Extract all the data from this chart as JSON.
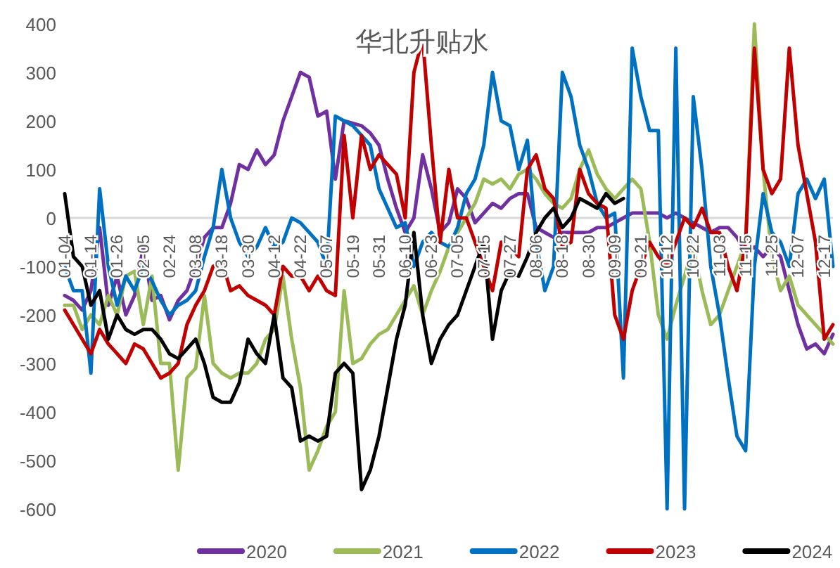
{
  "chart_data": {
    "type": "line",
    "title": "华北升贴水",
    "legend": "bottom",
    "ylim": [
      -600,
      400
    ],
    "yticks": [
      -600,
      -500,
      -400,
      -300,
      -200,
      -100,
      0,
      100,
      200,
      300,
      400
    ],
    "categories": [
      "01-04",
      null,
      null,
      "01-14",
      null,
      null,
      "01-26",
      null,
      null,
      "02-05",
      null,
      null,
      "02-24",
      null,
      null,
      "03-08",
      null,
      null,
      "03-18",
      null,
      null,
      "03-30",
      null,
      null,
      "04-12",
      null,
      null,
      "04-22",
      null,
      null,
      "05-07",
      null,
      null,
      "05-19",
      null,
      null,
      "05-31",
      null,
      null,
      "06-10",
      null,
      null,
      "06-23",
      null,
      null,
      "07-05",
      null,
      null,
      "07-15",
      null,
      null,
      "07-27",
      null,
      null,
      "08-06",
      null,
      null,
      "08-18",
      null,
      null,
      "08-30",
      null,
      null,
      "09-09",
      null,
      null,
      "09-21",
      null,
      null,
      "10-12",
      null,
      null,
      "10-22",
      null,
      null,
      "11-03",
      null,
      null,
      "11-15",
      null,
      null,
      "11-25",
      null,
      null,
      "12-07",
      null,
      null,
      "12-17",
      null
    ],
    "series": [
      {
        "name": "2020",
        "color": "#7030a0",
        "values": [
          -160,
          -170,
          -190,
          -150,
          -20,
          -180,
          -120,
          -200,
          -160,
          -60,
          -170,
          -160,
          -210,
          -170,
          -150,
          -100,
          -40,
          -20,
          -20,
          30,
          110,
          100,
          140,
          110,
          130,
          200,
          250,
          300,
          290,
          210,
          220,
          80,
          200,
          195,
          190,
          175,
          150,
          80,
          20,
          -30,
          0,
          130,
          60,
          -30,
          -10,
          60,
          40,
          -10,
          10,
          30,
          20,
          40,
          50,
          50,
          -20,
          -30,
          -40,
          -30,
          -30,
          -30,
          -30,
          -20,
          -20,
          -10,
          0,
          10,
          10,
          10,
          10,
          0,
          10,
          0,
          -10,
          -20,
          -30,
          -20,
          -20,
          -40,
          -70,
          -60,
          -80,
          -60,
          -80,
          -150,
          -220,
          -270,
          -260,
          -280,
          -240
        ]
      },
      {
        "name": "2021",
        "color": "#9bbb59",
        "values": [
          -180,
          -180,
          -230,
          -200,
          -220,
          -160,
          -200,
          -120,
          -110,
          -220,
          -120,
          -300,
          -300,
          -520,
          -330,
          -310,
          -160,
          -300,
          -320,
          -330,
          -320,
          -320,
          -300,
          -250,
          -230,
          -120,
          -250,
          -350,
          -520,
          -480,
          -430,
          -400,
          -150,
          -300,
          -290,
          -260,
          -240,
          -230,
          -200,
          -170,
          -140,
          -200,
          -150,
          -110,
          -60,
          -30,
          0,
          30,
          80,
          70,
          80,
          60,
          90,
          100,
          80,
          50,
          30,
          20,
          40,
          100,
          140,
          90,
          60,
          40,
          60,
          80,
          60,
          -50,
          -200,
          -250,
          -180,
          -120,
          -60,
          -150,
          -220,
          -200,
          -150,
          -100,
          -50,
          400,
          100,
          -80,
          -150,
          -120,
          -180,
          -200,
          -220,
          -240,
          -260
        ]
      },
      {
        "name": "2022",
        "color": "#0070c0",
        "values": [
          -100,
          -150,
          -150,
          -320,
          60,
          -100,
          -180,
          -120,
          -150,
          -100,
          -130,
          -170,
          -200,
          -180,
          -170,
          -150,
          -80,
          -20,
          100,
          0,
          -50,
          -80,
          -60,
          -20,
          -60,
          -50,
          0,
          -10,
          -30,
          -50,
          -100,
          210,
          200,
          190,
          170,
          150,
          60,
          20,
          -20,
          -10,
          -100,
          -50,
          -30,
          -50,
          -60,
          -20,
          50,
          80,
          150,
          300,
          200,
          190,
          100,
          160,
          -50,
          -150,
          -100,
          300,
          250,
          150,
          100,
          30,
          0,
          10,
          -330,
          350,
          250,
          180,
          180,
          -600,
          350,
          -600,
          250,
          100,
          -100,
          -200,
          -330,
          -450,
          -480,
          -100,
          50,
          -30,
          -50,
          -100,
          50,
          80,
          40,
          80,
          -100
        ]
      },
      {
        "name": "2023",
        "color": "#c00000",
        "values": [
          -190,
          -220,
          -250,
          -280,
          -230,
          -260,
          -280,
          -300,
          -260,
          -270,
          -300,
          -330,
          -320,
          -300,
          -220,
          -180,
          -150,
          -100,
          -90,
          -150,
          -140,
          -160,
          -170,
          -180,
          -200,
          -100,
          -120,
          -120,
          -150,
          -120,
          -150,
          -160,
          170,
          0,
          170,
          100,
          130,
          110,
          90,
          0,
          300,
          370,
          150,
          -50,
          100,
          0,
          0,
          -50,
          -100,
          -150,
          -50,
          -60,
          -80,
          100,
          130,
          60,
          40,
          -60,
          -50,
          100,
          50,
          30,
          20,
          -200,
          -250,
          -150,
          -100,
          -50,
          -80,
          -100,
          -50,
          0,
          -20,
          20,
          -30,
          -30,
          -100,
          -150,
          -50,
          350,
          100,
          50,
          80,
          350,
          150,
          50,
          -50,
          -250,
          -220
        ]
      },
      {
        "name": "2024",
        "color": "#000000",
        "values": [
          50,
          -80,
          -100,
          -180,
          -150,
          -250,
          -200,
          -230,
          -240,
          -230,
          -230,
          -250,
          -280,
          -290,
          -270,
          -250,
          -300,
          -370,
          -380,
          -380,
          -340,
          -250,
          -280,
          -300,
          -200,
          -330,
          -350,
          -460,
          -450,
          -460,
          -450,
          -320,
          -300,
          -320,
          -560,
          -520,
          -450,
          -350,
          -250,
          -180,
          -30,
          -200,
          -300,
          -250,
          -220,
          -200,
          -150,
          -100,
          -50,
          -250,
          -150,
          -110,
          -120,
          -80,
          -30,
          0,
          20,
          -20,
          0,
          40,
          30,
          20,
          50,
          30,
          40,
          null,
          null,
          null,
          null,
          null,
          null,
          null,
          null,
          null,
          null,
          null,
          null,
          null,
          null,
          null,
          null,
          null,
          null,
          null,
          null,
          null,
          null,
          null,
          null
        ]
      }
    ]
  }
}
